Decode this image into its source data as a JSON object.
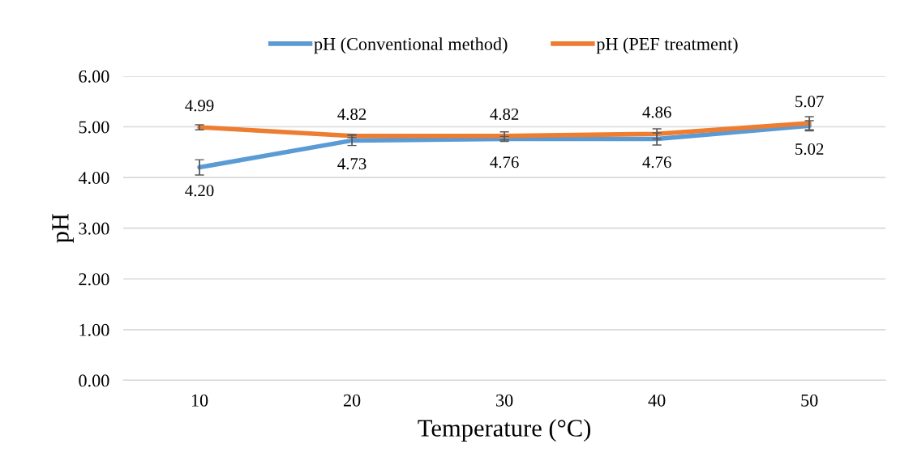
{
  "chart_data": {
    "type": "line",
    "xlabel": "Temperature (°C)",
    "ylabel": "pH",
    "categories": [
      "10",
      "20",
      "30",
      "40",
      "50"
    ],
    "series": [
      {
        "name": "pH (Conventional method)",
        "color": "#5b9bd5",
        "values": [
          4.2,
          4.73,
          4.76,
          4.76,
          5.02
        ],
        "value_labels": [
          "4.20",
          "4.73",
          "4.76",
          "4.76",
          "5.02"
        ],
        "errors": [
          0.15,
          0.1,
          0.05,
          0.12,
          0.1
        ]
      },
      {
        "name": "pH (PEF treatment)",
        "color": "#ed7d31",
        "values": [
          4.99,
          4.82,
          4.82,
          4.86,
          5.07
        ],
        "value_labels": [
          "4.99",
          "4.82",
          "4.82",
          "4.86",
          "5.07"
        ],
        "errors": [
          0.05,
          0.03,
          0.08,
          0.1,
          0.13
        ]
      }
    ],
    "ylim": [
      0,
      6
    ],
    "yticks": [
      {
        "value": 0,
        "label": "0.00"
      },
      {
        "value": 1,
        "label": "1.00"
      },
      {
        "value": 2,
        "label": "2.00"
      },
      {
        "value": 3,
        "label": "3.00"
      },
      {
        "value": 4,
        "label": "4.00"
      },
      {
        "value": 5,
        "label": "5.00"
      },
      {
        "value": 6,
        "label": "6.00"
      }
    ],
    "grid": "y",
    "legend": "top",
    "marker": "none",
    "line_style": "solid"
  }
}
